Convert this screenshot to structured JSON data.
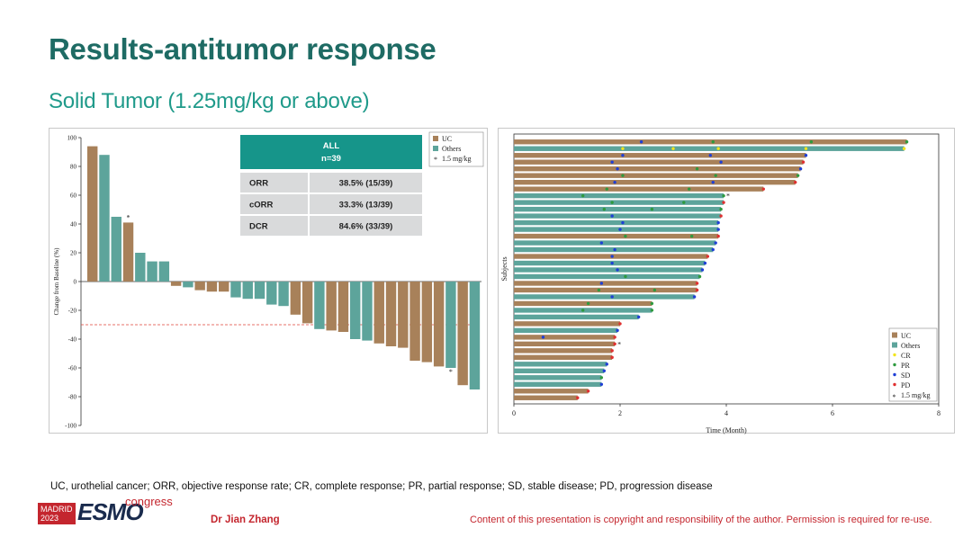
{
  "slide": {
    "title": "Results-antitumor response",
    "subtitle": "Solid Tumor (1.25mg/kg or above)",
    "footnote": "UC, urothelial cancer; ORR, objective response rate; CR, complete response; PR, partial response; SD, stable disease; PD, progression disease",
    "logo": {
      "city": "MADRID",
      "year": "2023",
      "brand": "ESMO",
      "suffix": "congress"
    },
    "author": "Dr Jian Zhang",
    "copyright": "Content of this presentation is copyright and responsibility of the author. Permission is required for re-use."
  },
  "colors": {
    "title": "#1e6b64",
    "subtitle": "#1f9a8a",
    "uc": "#a8815a",
    "others": "#5da49b",
    "cr": "#f2e41e",
    "pr": "#2e9a3e",
    "sd": "#1f3fd6",
    "pd": "#e03030",
    "table_header": "#16958a",
    "table_row": "#d9dadb",
    "threshold": "#e0443a",
    "brand_red": "#c4262e"
  },
  "chart_data": [
    {
      "type": "bar",
      "name": "waterfall",
      "ylabel": "Change from Baseline (%)",
      "ylim": [
        -100,
        100
      ],
      "yticks": [
        100,
        80,
        60,
        40,
        20,
        0,
        -20,
        -40,
        -60,
        -80,
        -100
      ],
      "threshold": -30,
      "legend": {
        "position": "top-right",
        "items": [
          "UC",
          "Others",
          "1.5 mg/kg"
        ]
      },
      "values": [
        94,
        88,
        45,
        41,
        20,
        14,
        14,
        -3,
        -4,
        -6,
        -7,
        -7,
        -11,
        -12,
        -12,
        -16,
        -17,
        -23,
        -29,
        -33,
        -34,
        -35,
        -40,
        -41,
        -43,
        -45,
        -46,
        -55,
        -56,
        -59,
        -60,
        -72,
        -75
      ],
      "groups": [
        "UC",
        "Others",
        "Others",
        "UC",
        "Others",
        "Others",
        "Others",
        "UC",
        "Others",
        "UC",
        "UC",
        "UC",
        "Others",
        "Others",
        "Others",
        "Others",
        "Others",
        "UC",
        "UC",
        "Others",
        "UC",
        "UC",
        "Others",
        "Others",
        "UC",
        "UC",
        "UC",
        "UC",
        "UC",
        "UC",
        "Others",
        "UC",
        "Others"
      ],
      "high_dose_marker_index": [
        3,
        30
      ],
      "summary_table": {
        "header": "ALL",
        "subheader": "n=39",
        "rows": [
          {
            "label": "ORR",
            "value": "38.5% (15/39)"
          },
          {
            "label": "cORR",
            "value": "33.3% (13/39)"
          },
          {
            "label": "DCR",
            "value": "84.6% (33/39)"
          }
        ]
      }
    },
    {
      "type": "swimmer",
      "name": "swimmer",
      "xlabel": "Time (Month)",
      "ylabel": "Subjects",
      "xlim": [
        0,
        8
      ],
      "xticks": [
        0,
        2,
        4,
        6,
        8
      ],
      "legend": {
        "position": "bottom-right",
        "items": [
          "UC",
          "Others",
          "CR",
          "PR",
          "SD",
          "PD",
          "1.5 mg/kg"
        ]
      },
      "subjects": [
        {
          "group": "UC",
          "duration": 7.4,
          "events": [
            {
              "t": 2.4,
              "e": "SD"
            },
            {
              "t": 3.75,
              "e": "PR"
            },
            {
              "t": 5.6,
              "e": "PR"
            },
            {
              "t": 7.4,
              "e": "PR"
            }
          ]
        },
        {
          "group": "Others",
          "duration": 7.35,
          "events": [
            {
              "t": 2.05,
              "e": "CR"
            },
            {
              "t": 3.0,
              "e": "CR"
            },
            {
              "t": 3.85,
              "e": "CR"
            },
            {
              "t": 5.5,
              "e": "CR"
            },
            {
              "t": 7.35,
              "e": "CR"
            }
          ]
        },
        {
          "group": "UC",
          "duration": 5.5,
          "events": [
            {
              "t": 2.05,
              "e": "SD"
            },
            {
              "t": 3.7,
              "e": "SD"
            },
            {
              "t": 5.5,
              "e": "SD"
            }
          ]
        },
        {
          "group": "UC",
          "duration": 5.45,
          "events": [
            {
              "t": 1.85,
              "e": "SD"
            },
            {
              "t": 3.9,
              "e": "SD"
            },
            {
              "t": 5.45,
              "e": "PD"
            }
          ]
        },
        {
          "group": "UC",
          "duration": 5.4,
          "events": [
            {
              "t": 1.95,
              "e": "SD"
            },
            {
              "t": 3.45,
              "e": "PR"
            },
            {
              "t": 5.4,
              "e": "SD"
            }
          ]
        },
        {
          "group": "UC",
          "duration": 5.35,
          "events": [
            {
              "t": 2.05,
              "e": "PR"
            },
            {
              "t": 3.8,
              "e": "PR"
            },
            {
              "t": 5.35,
              "e": "PR"
            }
          ]
        },
        {
          "group": "UC",
          "duration": 5.3,
          "events": [
            {
              "t": 1.9,
              "e": "SD"
            },
            {
              "t": 3.75,
              "e": "SD"
            },
            {
              "t": 5.3,
              "e": "PD"
            }
          ]
        },
        {
          "group": "UC",
          "duration": 4.7,
          "events": [
            {
              "t": 1.75,
              "e": "PR"
            },
            {
              "t": 3.3,
              "e": "PR"
            },
            {
              "t": 4.7,
              "e": "PD"
            }
          ]
        },
        {
          "group": "Others",
          "duration": 3.95,
          "events": [
            {
              "t": 1.3,
              "e": "PR"
            },
            {
              "t": 3.95,
              "e": "PR"
            }
          ],
          "high_dose": true
        },
        {
          "group": "Others",
          "duration": 3.95,
          "events": [
            {
              "t": 1.85,
              "e": "PR"
            },
            {
              "t": 3.2,
              "e": "PR"
            },
            {
              "t": 3.95,
              "e": "PD"
            }
          ]
        },
        {
          "group": "Others",
          "duration": 3.9,
          "events": [
            {
              "t": 1.7,
              "e": "PR"
            },
            {
              "t": 2.6,
              "e": "PR"
            },
            {
              "t": 3.9,
              "e": "PR"
            }
          ]
        },
        {
          "group": "Others",
          "duration": 3.9,
          "events": [
            {
              "t": 1.85,
              "e": "SD"
            },
            {
              "t": 3.9,
              "e": "PD"
            }
          ]
        },
        {
          "group": "Others",
          "duration": 3.85,
          "events": [
            {
              "t": 2.05,
              "e": "SD"
            },
            {
              "t": 3.85,
              "e": "SD"
            }
          ]
        },
        {
          "group": "Others",
          "duration": 3.85,
          "events": [
            {
              "t": 2.0,
              "e": "SD"
            },
            {
              "t": 3.85,
              "e": "SD"
            }
          ]
        },
        {
          "group": "UC",
          "duration": 3.85,
          "events": [
            {
              "t": 2.1,
              "e": "PR"
            },
            {
              "t": 3.35,
              "e": "PR"
            },
            {
              "t": 3.85,
              "e": "PD"
            }
          ]
        },
        {
          "group": "Others",
          "duration": 3.8,
          "events": [
            {
              "t": 1.65,
              "e": "SD"
            },
            {
              "t": 3.8,
              "e": "SD"
            }
          ]
        },
        {
          "group": "Others",
          "duration": 3.75,
          "events": [
            {
              "t": 1.9,
              "e": "SD"
            },
            {
              "t": 3.75,
              "e": "SD"
            }
          ]
        },
        {
          "group": "UC",
          "duration": 3.65,
          "events": [
            {
              "t": 1.85,
              "e": "SD"
            },
            {
              "t": 3.65,
              "e": "PD"
            }
          ]
        },
        {
          "group": "Others",
          "duration": 3.6,
          "events": [
            {
              "t": 1.85,
              "e": "SD"
            },
            {
              "t": 3.6,
              "e": "SD"
            }
          ]
        },
        {
          "group": "Others",
          "duration": 3.55,
          "events": [
            {
              "t": 1.95,
              "e": "SD"
            },
            {
              "t": 3.55,
              "e": "SD"
            }
          ]
        },
        {
          "group": "Others",
          "duration": 3.5,
          "events": [
            {
              "t": 2.1,
              "e": "PR"
            },
            {
              "t": 3.5,
              "e": "PR"
            }
          ]
        },
        {
          "group": "UC",
          "duration": 3.45,
          "events": [
            {
              "t": 1.65,
              "e": "SD"
            },
            {
              "t": 3.45,
              "e": "PD"
            }
          ]
        },
        {
          "group": "UC",
          "duration": 3.45,
          "events": [
            {
              "t": 1.6,
              "e": "PR"
            },
            {
              "t": 2.65,
              "e": "PR"
            },
            {
              "t": 3.45,
              "e": "PD"
            }
          ]
        },
        {
          "group": "Others",
          "duration": 3.4,
          "events": [
            {
              "t": 1.85,
              "e": "SD"
            },
            {
              "t": 3.4,
              "e": "SD"
            }
          ]
        },
        {
          "group": "UC",
          "duration": 2.6,
          "events": [
            {
              "t": 1.4,
              "e": "PR"
            },
            {
              "t": 2.6,
              "e": "PR"
            }
          ]
        },
        {
          "group": "Others",
          "duration": 2.6,
          "events": [
            {
              "t": 1.3,
              "e": "PR"
            },
            {
              "t": 2.6,
              "e": "PR"
            }
          ]
        },
        {
          "group": "Others",
          "duration": 2.35,
          "events": [
            {
              "t": 2.35,
              "e": "SD"
            }
          ]
        },
        {
          "group": "UC",
          "duration": 2.0,
          "events": [
            {
              "t": 2.0,
              "e": "PD"
            }
          ]
        },
        {
          "group": "Others",
          "duration": 1.95,
          "events": [
            {
              "t": 1.95,
              "e": "SD"
            }
          ]
        },
        {
          "group": "UC",
          "duration": 1.9,
          "events": [
            {
              "t": 0.55,
              "e": "SD"
            },
            {
              "t": 1.9,
              "e": "PD"
            }
          ]
        },
        {
          "group": "UC",
          "duration": 1.9,
          "events": [
            {
              "t": 1.9,
              "e": "PD"
            }
          ],
          "high_dose": true
        },
        {
          "group": "UC",
          "duration": 1.85,
          "events": [
            {
              "t": 1.85,
              "e": "PD"
            }
          ]
        },
        {
          "group": "UC",
          "duration": 1.85,
          "events": [
            {
              "t": 1.85,
              "e": "PD"
            }
          ]
        },
        {
          "group": "Others",
          "duration": 1.75,
          "events": [
            {
              "t": 1.75,
              "e": "SD"
            }
          ]
        },
        {
          "group": "Others",
          "duration": 1.7,
          "events": [
            {
              "t": 1.7,
              "e": "SD"
            }
          ]
        },
        {
          "group": "Others",
          "duration": 1.65,
          "events": [
            {
              "t": 1.65,
              "e": "PR"
            }
          ]
        },
        {
          "group": "Others",
          "duration": 1.65,
          "events": [
            {
              "t": 1.65,
              "e": "SD"
            }
          ]
        },
        {
          "group": "UC",
          "duration": 1.4,
          "events": [
            {
              "t": 1.4,
              "e": "PD"
            }
          ]
        },
        {
          "group": "UC",
          "duration": 1.2,
          "events": [
            {
              "t": 1.2,
              "e": "PD"
            }
          ]
        }
      ]
    }
  ]
}
